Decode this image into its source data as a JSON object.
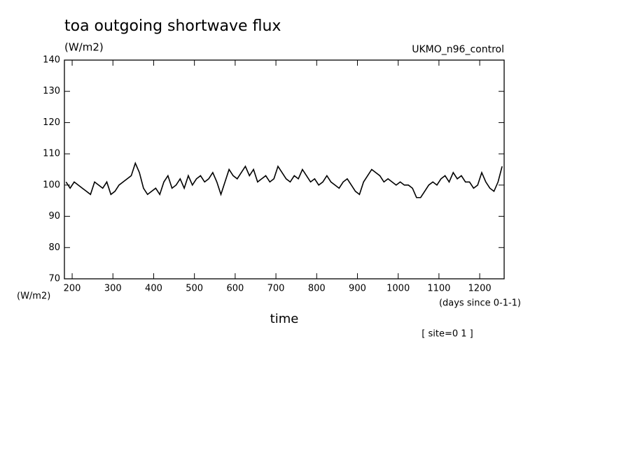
{
  "chart_data": {
    "type": "line",
    "title": "toa outgoing shortwave flux",
    "ylabel": "(W/m2)",
    "subtitle": "UKMO_n96_control",
    "corner_label": "(W/m2)",
    "xunit": "(days since 0-1-1)",
    "xlabel": "time",
    "annotation": "[ site=0 1 ]",
    "x": [
      185,
      195,
      205,
      215,
      225,
      235,
      245,
      255,
      265,
      275,
      285,
      295,
      305,
      315,
      325,
      335,
      345,
      355,
      365,
      375,
      385,
      395,
      405,
      415,
      425,
      435,
      445,
      455,
      465,
      475,
      485,
      495,
      505,
      515,
      525,
      535,
      545,
      555,
      565,
      575,
      585,
      595,
      605,
      615,
      625,
      635,
      645,
      655,
      665,
      675,
      685,
      695,
      705,
      715,
      725,
      735,
      745,
      755,
      765,
      775,
      785,
      795,
      805,
      815,
      825,
      835,
      845,
      855,
      865,
      875,
      885,
      895,
      905,
      915,
      925,
      935,
      945,
      955,
      965,
      975,
      985,
      995,
      1005,
      1015,
      1025,
      1035,
      1045,
      1055,
      1065,
      1075,
      1085,
      1095,
      1105,
      1115,
      1125,
      1135,
      1145,
      1155,
      1165,
      1175,
      1185,
      1195,
      1205,
      1215,
      1225,
      1235,
      1245,
      1255
    ],
    "series": [
      {
        "color": "#000000",
        "values": [
          101,
          99,
          101,
          100,
          99,
          98,
          97,
          101,
          100,
          99,
          101,
          97,
          98,
          100,
          101,
          102,
          103,
          107,
          104,
          99,
          97,
          98,
          99,
          97,
          101,
          103,
          99,
          100,
          102,
          99,
          103,
          100,
          102,
          103,
          101,
          102,
          104,
          101,
          97,
          101,
          105,
          103,
          102,
          104,
          106,
          103,
          105,
          101,
          102,
          103,
          101,
          102,
          106,
          104,
          102,
          101,
          103,
          102,
          105,
          103,
          101,
          102,
          100,
          101,
          103,
          101,
          100,
          99,
          101,
          102,
          100,
          98,
          97,
          101,
          103,
          105,
          104,
          103,
          101,
          102,
          101,
          100,
          101,
          100,
          100,
          99,
          96,
          96,
          98,
          100,
          101,
          100,
          102,
          103,
          101,
          104,
          102,
          103,
          101,
          101,
          99,
          100,
          104,
          101,
          99,
          98,
          101,
          106
        ]
      }
    ],
    "xlim": [
      181,
      1260
    ],
    "ylim": [
      70,
      140
    ],
    "xticks": [
      200,
      300,
      400,
      500,
      600,
      700,
      800,
      900,
      1000,
      1100,
      1200
    ],
    "yticks": [
      70,
      80,
      90,
      100,
      110,
      120,
      130,
      140
    ]
  }
}
